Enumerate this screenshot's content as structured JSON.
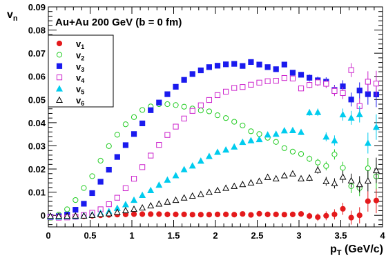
{
  "chart_data": {
    "type": "scatter",
    "title": "Au+Au 200 GeV (b = 0 fm)",
    "xlabel": {
      "main": "p",
      "sub": "T",
      "suffix": " (GeV/c)"
    },
    "ylabel": {
      "main": "v",
      "sub": "n"
    },
    "xlim": [
      0,
      4
    ],
    "ylim": [
      -0.005,
      0.09
    ],
    "x_ticks": [
      "0",
      "0.5",
      "1",
      "1.5",
      "2",
      "2.5",
      "3",
      "3.5",
      "4"
    ],
    "y_ticks": [
      "0",
      "0.01",
      "0.02",
      "0.03",
      "0.04",
      "0.05",
      "0.06",
      "0.07",
      "0.08",
      "0.09"
    ],
    "grid": false,
    "legend_position": "top-left",
    "x": [
      0.025,
      0.125,
      0.225,
      0.325,
      0.425,
      0.525,
      0.625,
      0.725,
      0.825,
      0.925,
      1.025,
      1.125,
      1.225,
      1.325,
      1.425,
      1.525,
      1.625,
      1.725,
      1.825,
      1.925,
      2.025,
      2.125,
      2.225,
      2.325,
      2.425,
      2.525,
      2.625,
      2.725,
      2.825,
      2.925,
      3.025,
      3.125,
      3.225,
      3.325,
      3.425,
      3.525,
      3.625,
      3.725,
      3.825,
      3.925
    ],
    "series": [
      {
        "name": "1",
        "marker": "circle-filled",
        "color": "#e41a1c",
        "values": [
          -0.001,
          -0.001,
          -0.0008,
          -0.0006,
          -0.0004,
          -0.0002,
          0.0,
          0.0002,
          0.0003,
          0.0004,
          0.0005,
          0.0005,
          0.0005,
          0.0005,
          0.0004,
          0.0004,
          0.0004,
          0.0003,
          0.0003,
          0.0003,
          0.0004,
          0.0004,
          0.0003,
          0.0006,
          0.0002,
          0.0007,
          0.0004,
          0.0004,
          0.0003,
          0.0004,
          0.0006,
          -0.0003,
          -0.0008,
          -0.0002,
          0.0004,
          0.0028,
          -0.001,
          0.0,
          0.0061,
          0.0064
        ],
        "errors": [
          0.0003,
          0.0003,
          0.0003,
          0.0003,
          0.0003,
          0.0003,
          0.0003,
          0.0003,
          0.0003,
          0.0003,
          0.0003,
          0.0003,
          0.0003,
          0.0003,
          0.0003,
          0.0003,
          0.0003,
          0.0003,
          0.0004,
          0.0004,
          0.0004,
          0.0004,
          0.0005,
          0.0005,
          0.0006,
          0.0006,
          0.0007,
          0.0008,
          0.0009,
          0.001,
          0.0012,
          0.0014,
          0.0016,
          0.0019,
          0.0022,
          0.0026,
          0.003,
          0.0035,
          0.0045,
          0.0055
        ]
      },
      {
        "name": "2",
        "marker": "circle-open",
        "color": "#22cc22",
        "values": [
          -0.001,
          0.0003,
          0.0026,
          0.0066,
          0.0118,
          0.0169,
          0.0236,
          0.0299,
          0.0348,
          0.0393,
          0.0424,
          0.0455,
          0.047,
          0.048,
          0.048,
          0.0476,
          0.0469,
          0.0461,
          0.0453,
          0.0449,
          0.0432,
          0.042,
          0.0404,
          0.0388,
          0.0363,
          0.0351,
          0.0335,
          0.0317,
          0.029,
          0.0275,
          0.0265,
          0.0244,
          0.0228,
          0.0213,
          0.0263,
          0.0205,
          0.0126,
          0.0118,
          0.0203,
          0.0168
        ],
        "errors": [
          0.0003,
          0.0003,
          0.0003,
          0.0003,
          0.0003,
          0.0003,
          0.0003,
          0.0003,
          0.0003,
          0.0003,
          0.0003,
          0.0003,
          0.0003,
          0.0003,
          0.0003,
          0.0003,
          0.0003,
          0.0003,
          0.0004,
          0.0004,
          0.0004,
          0.0004,
          0.0005,
          0.0005,
          0.0006,
          0.0006,
          0.0007,
          0.0008,
          0.0009,
          0.001,
          0.0012,
          0.0014,
          0.0016,
          0.0019,
          0.0022,
          0.0026,
          0.003,
          0.0035,
          0.0045,
          0.0055
        ]
      },
      {
        "name": "3",
        "marker": "square-filled",
        "color": "#1a1aee",
        "values": [
          -0.0006,
          -0.0004,
          0.0003,
          0.0024,
          0.005,
          0.0096,
          0.0145,
          0.0197,
          0.0252,
          0.0303,
          0.0351,
          0.0397,
          0.0454,
          0.0487,
          0.0523,
          0.0555,
          0.0585,
          0.061,
          0.0626,
          0.064,
          0.0646,
          0.0652,
          0.0654,
          0.0645,
          0.0662,
          0.0651,
          0.064,
          0.0631,
          0.0651,
          0.0616,
          0.0607,
          0.0594,
          0.0583,
          0.0577,
          0.0541,
          0.0557,
          0.05,
          0.0539,
          0.0523,
          0.0522
        ],
        "errors": [
          0.0003,
          0.0003,
          0.0003,
          0.0003,
          0.0003,
          0.0003,
          0.0003,
          0.0003,
          0.0003,
          0.0003,
          0.0003,
          0.0003,
          0.0003,
          0.0003,
          0.0003,
          0.0003,
          0.0003,
          0.0003,
          0.0004,
          0.0004,
          0.0004,
          0.0004,
          0.0005,
          0.0005,
          0.0006,
          0.0006,
          0.0007,
          0.0008,
          0.0009,
          0.001,
          0.0012,
          0.0014,
          0.0016,
          0.0019,
          0.0022,
          0.0026,
          0.003,
          0.0035,
          0.0045,
          0.0055
        ]
      },
      {
        "name": "4",
        "marker": "square-open",
        "color": "#cc22cc",
        "values": [
          -0.0008,
          -0.001,
          -0.0009,
          -0.0006,
          0.0001,
          0.0011,
          0.0026,
          0.0048,
          0.0076,
          0.0117,
          0.0158,
          0.0208,
          0.0258,
          0.0304,
          0.0347,
          0.0383,
          0.0418,
          0.0451,
          0.0475,
          0.0498,
          0.0519,
          0.0534,
          0.055,
          0.0554,
          0.0564,
          0.0573,
          0.0579,
          0.0581,
          0.0593,
          0.0591,
          0.0548,
          0.0563,
          0.0574,
          0.0568,
          0.0537,
          0.0528,
          0.0627,
          0.0472,
          0.0577,
          0.0569
        ],
        "errors": [
          0.0003,
          0.0003,
          0.0003,
          0.0003,
          0.0003,
          0.0003,
          0.0003,
          0.0003,
          0.0003,
          0.0003,
          0.0003,
          0.0003,
          0.0003,
          0.0003,
          0.0003,
          0.0003,
          0.0003,
          0.0003,
          0.0004,
          0.0004,
          0.0004,
          0.0004,
          0.0005,
          0.0005,
          0.0006,
          0.0006,
          0.0007,
          0.0008,
          0.0009,
          0.001,
          0.0012,
          0.0014,
          0.0016,
          0.0019,
          0.0022,
          0.0026,
          0.003,
          0.0035,
          0.0045,
          0.0055
        ]
      },
      {
        "name": "5",
        "marker": "triangle-filled",
        "color": "#00ccee",
        "values": [
          -0.0006,
          -0.0006,
          -0.0005,
          -0.0004,
          -0.0001,
          0.0003,
          0.001,
          0.0017,
          0.0031,
          0.0047,
          0.0066,
          0.0087,
          0.0108,
          0.0131,
          0.0153,
          0.0172,
          0.0198,
          0.0214,
          0.0235,
          0.0255,
          0.0273,
          0.0283,
          0.0296,
          0.0316,
          0.0323,
          0.0328,
          0.0348,
          0.0351,
          0.0366,
          0.0367,
          0.0359,
          0.0444,
          0.0445,
          0.0339,
          0.0323,
          0.0435,
          0.0421,
          0.0436,
          0.0312,
          0.0381
        ],
        "errors": [
          0.0003,
          0.0003,
          0.0003,
          0.0003,
          0.0003,
          0.0003,
          0.0003,
          0.0003,
          0.0003,
          0.0003,
          0.0003,
          0.0003,
          0.0003,
          0.0003,
          0.0003,
          0.0003,
          0.0003,
          0.0003,
          0.0004,
          0.0004,
          0.0004,
          0.0004,
          0.0005,
          0.0005,
          0.0006,
          0.0006,
          0.0007,
          0.0008,
          0.0009,
          0.001,
          0.0012,
          0.0014,
          0.0016,
          0.0019,
          0.0022,
          0.0026,
          0.003,
          0.0035,
          0.0045,
          0.0055
        ]
      },
      {
        "name": "6",
        "marker": "triangle-open",
        "color": "#000000",
        "values": [
          -0.0003,
          -0.0003,
          -0.0003,
          -0.0002,
          -0.0002,
          0.0001,
          0.0005,
          0.0008,
          0.0014,
          0.0021,
          0.0027,
          0.0033,
          0.0042,
          0.005,
          0.0058,
          0.0066,
          0.0076,
          0.0084,
          0.0091,
          0.01,
          0.0108,
          0.0118,
          0.0126,
          0.0134,
          0.0141,
          0.0148,
          0.0165,
          0.0159,
          0.0172,
          0.018,
          0.0159,
          0.0162,
          0.0196,
          0.0147,
          0.0138,
          0.0166,
          0.015,
          0.0134,
          0.0149,
          0.0194
        ],
        "errors": [
          0.0003,
          0.0003,
          0.0003,
          0.0003,
          0.0003,
          0.0003,
          0.0003,
          0.0003,
          0.0003,
          0.0003,
          0.0003,
          0.0003,
          0.0003,
          0.0003,
          0.0003,
          0.0003,
          0.0003,
          0.0003,
          0.0004,
          0.0004,
          0.0004,
          0.0004,
          0.0005,
          0.0005,
          0.0006,
          0.0006,
          0.0007,
          0.0008,
          0.0009,
          0.001,
          0.0012,
          0.0014,
          0.0016,
          0.0019,
          0.0022,
          0.0026,
          0.003,
          0.0035,
          0.0045,
          0.0055
        ]
      }
    ]
  }
}
